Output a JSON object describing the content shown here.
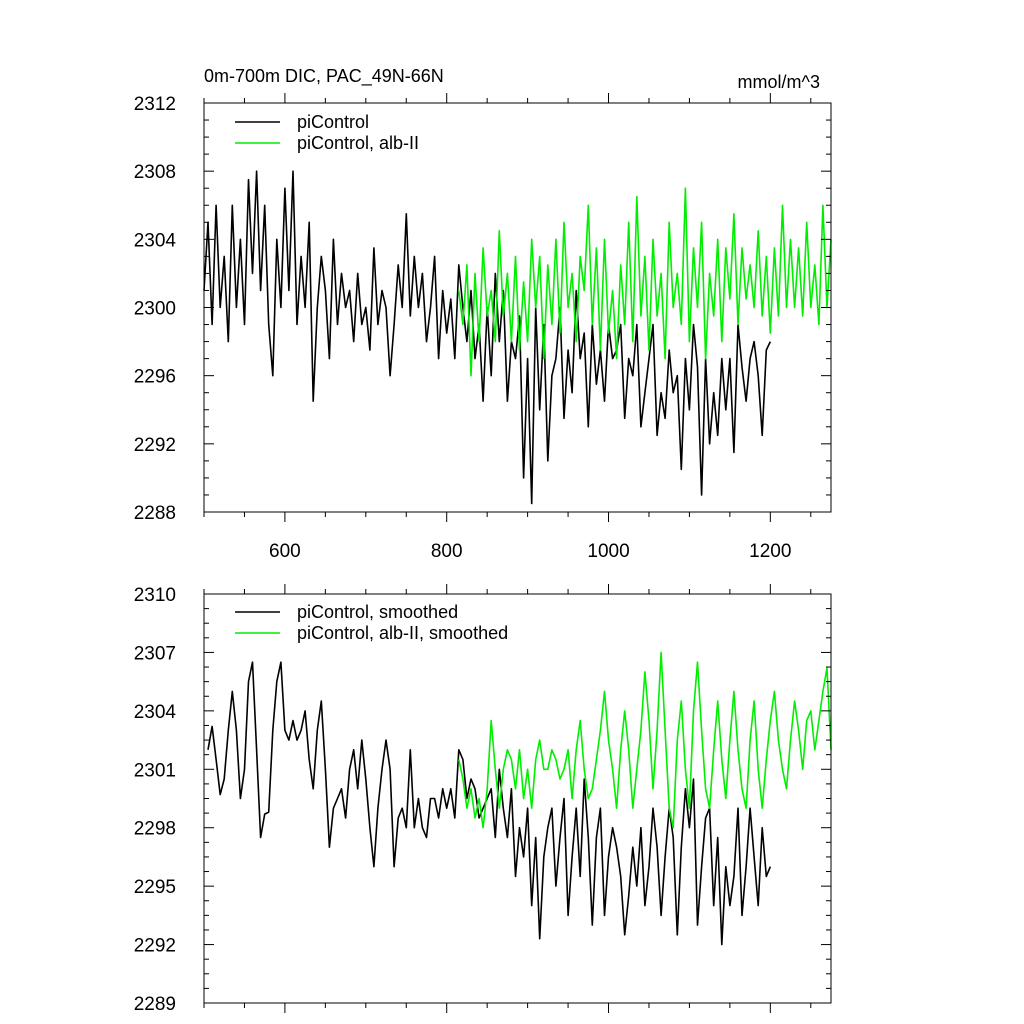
{
  "figure": {
    "title_left": "0m-700m DIC, PAC_49N-66N",
    "title_right": "mmol/m^3"
  },
  "colors": {
    "control": "#000000",
    "alb": "#00ee00",
    "axis": "#000000"
  },
  "chart_data": [
    {
      "type": "line",
      "title": "0m-700m DIC, PAC_49N-66N",
      "unit": "mmol/m^3",
      "xlim": [
        500,
        1275
      ],
      "ylim": [
        2288,
        2312
      ],
      "x_ticks": [
        600,
        800,
        1000,
        1200
      ],
      "x_tick_labels": [
        "600",
        "800",
        "1000",
        "1200"
      ],
      "y_ticks": [
        2288,
        2292,
        2296,
        2300,
        2304,
        2308,
        2312
      ],
      "y_tick_labels": [
        "2288",
        "2292",
        "2296",
        "2300",
        "2304",
        "2308",
        "2312"
      ],
      "legend": [
        "piControl",
        "piControl, alb-II"
      ],
      "series": [
        {
          "name": "piControl",
          "color": "#000000",
          "x": [
            500,
            505,
            510,
            515,
            520,
            525,
            530,
            535,
            540,
            545,
            550,
            555,
            560,
            565,
            570,
            575,
            580,
            585,
            590,
            595,
            600,
            605,
            610,
            615,
            620,
            625,
            630,
            635,
            640,
            645,
            650,
            655,
            660,
            665,
            670,
            675,
            680,
            685,
            690,
            695,
            700,
            705,
            710,
            715,
            720,
            725,
            730,
            735,
            740,
            745,
            750,
            755,
            760,
            765,
            770,
            775,
            780,
            785,
            790,
            795,
            800,
            805,
            810,
            815,
            820,
            825,
            830,
            835,
            840,
            845,
            850,
            855,
            860,
            865,
            870,
            875,
            880,
            885,
            890,
            895,
            900,
            905,
            910,
            915,
            920,
            925,
            930,
            935,
            940,
            945,
            950,
            955,
            960,
            965,
            970,
            975,
            980,
            985,
            990,
            995,
            1000,
            1005,
            1010,
            1015,
            1020,
            1025,
            1030,
            1035,
            1040,
            1045,
            1050,
            1055,
            1060,
            1065,
            1070,
            1075,
            1080,
            1085,
            1090,
            1095,
            1100,
            1105,
            1110,
            1115,
            1120,
            1125,
            1130,
            1135,
            1140,
            1145,
            1150,
            1155,
            1160,
            1165,
            1170,
            1175,
            1180,
            1185,
            1190,
            1195,
            1200
          ],
          "values": [
            2301,
            2305,
            2299,
            2306,
            2300,
            2303,
            2298,
            2306,
            2300,
            2304,
            2299,
            2307.5,
            2302,
            2308,
            2301,
            2306,
            2299,
            2296,
            2304,
            2300,
            2307,
            2301,
            2308,
            2299,
            2303,
            2300,
            2305,
            2294.5,
            2300,
            2303,
            2301,
            2297,
            2304,
            2299,
            2302,
            2300,
            2301,
            2298,
            2302,
            2299,
            2300,
            2297.5,
            2303.5,
            2299,
            2301,
            2300,
            2296,
            2299,
            2302.5,
            2300,
            2305.5,
            2299.5,
            2303,
            2300,
            2302,
            2298,
            2300,
            2303,
            2297,
            2301,
            2298.5,
            2300.5,
            2297,
            2302.5,
            2300,
            2298,
            2301,
            2297,
            2299,
            2294.5,
            2300,
            2296,
            2302,
            2298,
            2301,
            2294.5,
            2298,
            2297,
            2299.5,
            2290,
            2297,
            2288.5,
            2300,
            2294,
            2299,
            2291,
            2296,
            2297,
            2300,
            2293.5,
            2297.5,
            2295,
            2301,
            2297,
            2298.5,
            2293,
            2299,
            2295.5,
            2297.5,
            2294.5,
            2299,
            2297,
            2297.5,
            2299,
            2293.5,
            2297,
            2296,
            2299,
            2293,
            2295,
            2297,
            2299,
            2292.5,
            2295,
            2293.5,
            2297.5,
            2295,
            2296,
            2290.5,
            2297,
            2294,
            2299,
            2296.5,
            2289,
            2297,
            2292,
            2295,
            2292.5,
            2297,
            2294,
            2297,
            2291.5,
            2299,
            2296.5,
            2294.5,
            2297,
            2298,
            2296,
            2292.5,
            2297.5,
            2298
          ]
        },
        {
          "name": "piControl, alb-II",
          "color": "#00ee00",
          "x": [
            815,
            820,
            825,
            830,
            835,
            840,
            845,
            850,
            855,
            860,
            865,
            870,
            875,
            880,
            885,
            890,
            895,
            900,
            905,
            910,
            915,
            920,
            925,
            930,
            935,
            940,
            945,
            950,
            955,
            960,
            965,
            970,
            975,
            980,
            985,
            990,
            995,
            1000,
            1005,
            1010,
            1015,
            1020,
            1025,
            1030,
            1035,
            1040,
            1045,
            1050,
            1055,
            1060,
            1065,
            1070,
            1075,
            1080,
            1085,
            1090,
            1095,
            1100,
            1105,
            1110,
            1115,
            1120,
            1125,
            1130,
            1135,
            1140,
            1145,
            1150,
            1155,
            1160,
            1165,
            1170,
            1175,
            1180,
            1185,
            1190,
            1195,
            1200,
            1205,
            1210,
            1215,
            1220,
            1225,
            1230,
            1235,
            1240,
            1245,
            1250,
            1255,
            1260,
            1265,
            1270,
            1275
          ],
          "values": [
            2301,
            2299,
            2302.5,
            2296,
            2302,
            2298,
            2303.5,
            2299.5,
            2301,
            2298,
            2304.5,
            2299.5,
            2302,
            2298,
            2303,
            2297.5,
            2301.5,
            2298,
            2304,
            2300,
            2303,
            2297,
            2302.5,
            2299,
            2304,
            2298.5,
            2305,
            2300,
            2302,
            2298,
            2303,
            2301,
            2306,
            2299,
            2303.5,
            2297.5,
            2304,
            2298.5,
            2301,
            2297,
            2302.5,
            2299,
            2305,
            2298,
            2306.5,
            2299.5,
            2303,
            2297.5,
            2304,
            2299.5,
            2302,
            2297,
            2305,
            2300,
            2302,
            2299,
            2307,
            2298,
            2303.5,
            2300,
            2305,
            2297,
            2302,
            2299.5,
            2304,
            2298,
            2303.5,
            2300.5,
            2305.5,
            2299,
            2303.5,
            2300.5,
            2302.5,
            2300,
            2304.5,
            2299.5,
            2303,
            2298.5,
            2303.5,
            2299.5,
            2306,
            2300,
            2304,
            2300,
            2303.5,
            2299.5,
            2305,
            2300,
            2302.5,
            2299,
            2306,
            2300,
            2304
          ]
        }
      ]
    },
    {
      "type": "line",
      "xlim": [
        500,
        1275
      ],
      "ylim": [
        2289,
        2310
      ],
      "x_ticks": [
        600,
        800,
        1000,
        1200
      ],
      "y_ticks": [
        2289,
        2292,
        2295,
        2298,
        2301,
        2304,
        2307,
        2310
      ],
      "y_tick_labels": [
        "2289",
        "2292",
        "2295",
        "2298",
        "2301",
        "2304",
        "2307",
        "2310"
      ],
      "legend": [
        "piControl, smoothed",
        "piControl, alb-II, smoothed"
      ],
      "series": [
        {
          "name": "piControl, smoothed",
          "color": "#000000",
          "x": [
            505,
            510,
            515,
            520,
            525,
            530,
            535,
            540,
            545,
            550,
            555,
            560,
            565,
            570,
            575,
            580,
            585,
            590,
            595,
            600,
            605,
            610,
            615,
            620,
            625,
            630,
            635,
            640,
            645,
            650,
            655,
            660,
            665,
            670,
            675,
            680,
            685,
            690,
            695,
            700,
            705,
            710,
            715,
            720,
            725,
            730,
            735,
            740,
            745,
            750,
            755,
            760,
            765,
            770,
            775,
            780,
            785,
            790,
            795,
            800,
            805,
            810,
            815,
            820,
            825,
            830,
            835,
            840,
            845,
            850,
            855,
            860,
            865,
            870,
            875,
            880,
            885,
            890,
            895,
            900,
            905,
            910,
            915,
            920,
            925,
            930,
            935,
            940,
            945,
            950,
            955,
            960,
            965,
            970,
            975,
            980,
            985,
            990,
            995,
            1000,
            1005,
            1010,
            1015,
            1020,
            1025,
            1030,
            1035,
            1040,
            1045,
            1050,
            1055,
            1060,
            1065,
            1070,
            1075,
            1080,
            1085,
            1090,
            1095,
            1100,
            1105,
            1110,
            1115,
            1120,
            1125,
            1130,
            1135,
            1140,
            1145,
            1150,
            1155,
            1160,
            1165,
            1170,
            1175,
            1180,
            1185,
            1190,
            1195,
            1200
          ],
          "values": [
            2302,
            2303.2,
            2301.5,
            2299.7,
            2300.5,
            2303,
            2305,
            2303,
            2299.5,
            2301,
            2305.5,
            2306.5,
            2302,
            2297.5,
            2298.7,
            2298.8,
            2303,
            2305.5,
            2306.5,
            2303,
            2302.5,
            2303.5,
            2302.5,
            2303,
            2304,
            2301.5,
            2300,
            2303,
            2304.5,
            2301,
            2297,
            2299,
            2299.5,
            2300,
            2298.5,
            2301,
            2302,
            2300,
            2302.5,
            2300.5,
            2298,
            2296,
            2299,
            2301,
            2302.5,
            2301,
            2296,
            2298.5,
            2299,
            2298,
            2302,
            2298,
            2299.5,
            2298,
            2297.5,
            2299.5,
            2299.5,
            2298.5,
            2300,
            2299,
            2300,
            2298.5,
            2302,
            2301.5,
            2299.5,
            2300.5,
            2300,
            2298.5,
            2299,
            2299.5,
            2300,
            2297.5,
            2301,
            2299,
            2297.5,
            2300,
            2295.5,
            2298,
            2296.5,
            2299,
            2294,
            2297.5,
            2292.3,
            2296.5,
            2298,
            2299,
            2295,
            2297.5,
            2299.5,
            2293.5,
            2296.5,
            2299,
            2295.5,
            2300.5,
            2297.5,
            2293,
            2297.5,
            2299,
            2293.5,
            2296.5,
            2298,
            2297,
            2295.5,
            2292.5,
            2294.5,
            2297,
            2295,
            2298,
            2294,
            2296,
            2299,
            2297,
            2293.5,
            2296.5,
            2299,
            2297.5,
            2292.5,
            2297,
            2300,
            2298,
            2300.5,
            2293,
            2296,
            2298.5,
            2299,
            2294,
            2297.5,
            2292,
            2296,
            2294,
            2295.5,
            2299,
            2293.5,
            2296,
            2299,
            2296.5,
            2294,
            2298,
            2295.5,
            2296
          ]
        },
        {
          "name": "piControl, alb-II, smoothed",
          "color": "#00ee00",
          "x": [
            815,
            820,
            825,
            830,
            835,
            840,
            845,
            850,
            855,
            860,
            865,
            870,
            875,
            880,
            885,
            890,
            895,
            900,
            905,
            910,
            915,
            920,
            925,
            930,
            935,
            940,
            945,
            950,
            955,
            960,
            965,
            970,
            975,
            980,
            985,
            990,
            995,
            1000,
            1005,
            1010,
            1015,
            1020,
            1025,
            1030,
            1035,
            1040,
            1045,
            1050,
            1055,
            1060,
            1065,
            1070,
            1075,
            1080,
            1085,
            1090,
            1095,
            1100,
            1105,
            1110,
            1115,
            1120,
            1125,
            1130,
            1135,
            1140,
            1145,
            1150,
            1155,
            1160,
            1165,
            1170,
            1175,
            1180,
            1185,
            1190,
            1195,
            1200,
            1205,
            1210,
            1215,
            1220,
            1225,
            1230,
            1235,
            1240,
            1245,
            1250,
            1255,
            1260,
            1265,
            1270,
            1275
          ],
          "values": [
            2301.5,
            2300.5,
            2299,
            2300,
            2298.5,
            2299.5,
            2298,
            2300,
            2303.5,
            2301,
            2299,
            2301,
            2302,
            2301.5,
            2300,
            2302,
            2299.5,
            2301,
            2299,
            2301.5,
            2302.5,
            2301,
            2301,
            2302,
            2301.5,
            2300.5,
            2301,
            2302,
            2299.5,
            2302,
            2303.5,
            2301,
            2299.5,
            2300,
            2301.5,
            2303,
            2305,
            2302.5,
            2301,
            2299,
            2302,
            2304,
            2302,
            2299,
            2301,
            2303,
            2306,
            2303.5,
            2300,
            2303,
            2307,
            2303,
            2299,
            2298,
            2302.5,
            2304.5,
            2301,
            2299,
            2304,
            2306.5,
            2303,
            2300,
            2299,
            2302,
            2304.5,
            2301.5,
            2299.5,
            2302.5,
            2305,
            2302,
            2300,
            2299,
            2302.5,
            2304.5,
            2301,
            2299,
            2301.5,
            2303.5,
            2305,
            2302.5,
            2301,
            2300,
            2302.5,
            2304.5,
            2303,
            2301,
            2303.5,
            2304,
            2302,
            2303.5,
            2305,
            2306.2,
            2302
          ]
        }
      ]
    }
  ]
}
